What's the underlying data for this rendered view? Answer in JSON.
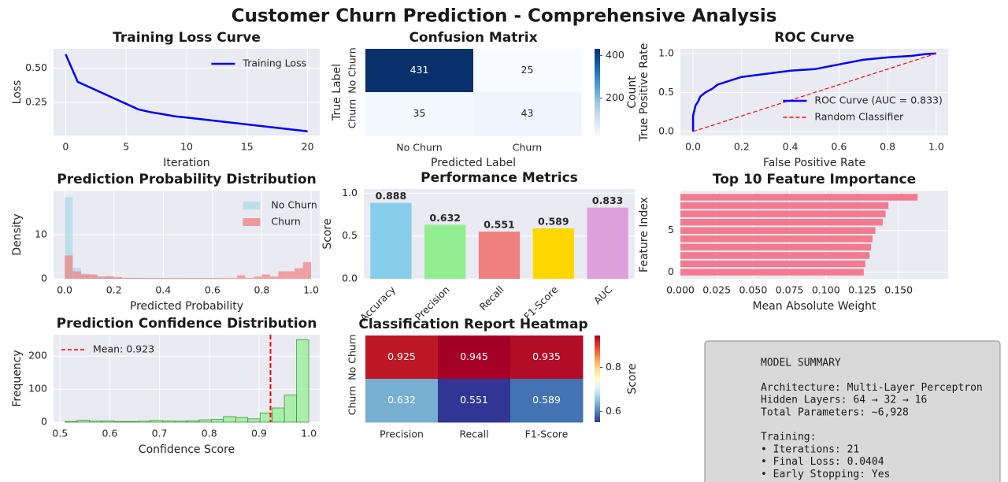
{
  "title": "Customer Churn Prediction - Comprehensive Analysis",
  "chart_data": [
    {
      "type": "line",
      "title": "Training Loss Curve",
      "xlabel": "Iteration",
      "ylabel": "Loss",
      "xlim": [
        -1,
        21
      ],
      "ylim": [
        0.01,
        0.64
      ],
      "xticks": [
        0,
        5,
        10,
        15,
        20
      ],
      "yticks": [
        0.25,
        {
          "value": 0.5,
          "label": "0.50"
        }
      ],
      "grid": true,
      "legend": "upper right",
      "series": [
        {
          "name": "Training Loss",
          "color": "#0000ff",
          "x": [
            0,
            1,
            2,
            3,
            4,
            5,
            6,
            7,
            8,
            9,
            10,
            11,
            12,
            13,
            14,
            15,
            16,
            17,
            18,
            19,
            20
          ],
          "values": [
            0.6,
            0.4,
            0.36,
            0.32,
            0.28,
            0.24,
            0.2,
            0.18,
            0.165,
            0.15,
            0.14,
            0.13,
            0.12,
            0.11,
            0.1,
            0.09,
            0.08,
            0.07,
            0.06,
            0.05,
            0.0404
          ]
        }
      ]
    },
    {
      "type": "heatmap",
      "title": "Confusion Matrix",
      "xlabel": "Predicted Label",
      "ylabel": "True Label",
      "rows": [
        "No Churn",
        "Churn"
      ],
      "cols": [
        "No Churn",
        "Churn"
      ],
      "values": [
        [
          431,
          25
        ],
        [
          35,
          43
        ]
      ],
      "colormap": "Blues",
      "clim": [
        25,
        431
      ],
      "cbar_ticks": [
        200,
        400
      ],
      "cbar_label": "Count"
    },
    {
      "type": "line",
      "title": "ROC Curve",
      "xlabel": "False Positive Rate",
      "ylabel": "True Positive Rate",
      "xlim": [
        -0.052,
        1.049
      ],
      "ylim": [
        -0.05,
        1.06
      ],
      "xticks": [
        {
          "value": 0,
          "label": "0.0"
        },
        0.2,
        0.4,
        0.6,
        0.8,
        {
          "value": 1,
          "label": "1.0"
        }
      ],
      "yticks": [
        {
          "value": 0,
          "label": "0.0"
        },
        0.5,
        {
          "value": 1,
          "label": "1.0"
        }
      ],
      "grid": true,
      "legend": "lower right",
      "series": [
        {
          "name": "ROC Curve (AUC = 0.833)",
          "color": "#0000ff",
          "x": [
            0,
            0,
            0.01,
            0.02,
            0.03,
            0.05,
            0.08,
            0.1,
            0.15,
            0.2,
            0.25,
            0.3,
            0.4,
            0.5,
            0.6,
            0.7,
            0.8,
            0.9,
            0.95,
            1
          ],
          "values": [
            0,
            0.2,
            0.33,
            0.38,
            0.45,
            0.5,
            0.55,
            0.6,
            0.65,
            0.7,
            0.72,
            0.74,
            0.78,
            0.8,
            0.86,
            0.92,
            0.95,
            0.97,
            0.99,
            1
          ]
        },
        {
          "name": "Random Classifier",
          "color": "#ff0000",
          "dash": true,
          "x": [
            0,
            1
          ],
          "values": [
            0,
            1
          ]
        }
      ]
    },
    {
      "type": "histogram",
      "title": "Prediction Probability Distribution",
      "xlabel": "Predicted Probability",
      "ylabel": "Density",
      "xlim": [
        -0.045,
        1.035
      ],
      "ylim": [
        0,
        20
      ],
      "xticks": [
        {
          "value": 0,
          "label": "0.0"
        },
        0.2,
        0.4,
        0.6,
        0.8,
        {
          "value": 1,
          "label": "1.0"
        }
      ],
      "yticks": [
        0,
        10
      ],
      "grid": true,
      "legend": "upper right",
      "bins": [
        0,
        0.033,
        0.067,
        0.1,
        0.133,
        0.167,
        0.2,
        0.233,
        0.267,
        0.3,
        0.333,
        0.367,
        0.4,
        0.433,
        0.467,
        0.5,
        0.533,
        0.567,
        0.6,
        0.633,
        0.667,
        0.7,
        0.733,
        0.767,
        0.8,
        0.833,
        0.867,
        0.9,
        0.933,
        0.967,
        1
      ],
      "series": [
        {
          "name": "No Churn",
          "color": "#add8e6",
          "values": [
            18.5,
            2.5,
            1.2,
            0.8,
            0.5,
            0.4,
            0.3,
            0.2,
            0.2,
            0.1,
            0.1,
            0.1,
            0,
            0,
            0,
            0,
            0,
            0,
            0,
            0,
            0,
            0,
            0,
            0,
            0,
            0,
            0,
            0,
            0,
            0
          ]
        },
        {
          "name": "Churn",
          "color": "#f08080",
          "values": [
            5.3,
            1.7,
            1,
            1,
            0.5,
            0.6,
            0.4,
            0.2,
            0.2,
            0.2,
            0.2,
            0.2,
            0.2,
            0.2,
            0.2,
            0.2,
            0.2,
            0.2,
            0.2,
            0.2,
            0.2,
            0.8,
            0.2,
            0.5,
            1,
            0.5,
            1.7,
            1.7,
            2.4,
            3.8
          ]
        }
      ]
    },
    {
      "type": "bar",
      "title": "Performance Metrics",
      "ylabel": "Score",
      "categories": [
        "Accuracy",
        "Precision",
        "Recall",
        "F1-Score",
        "AUC"
      ],
      "values": [
        0.888,
        0.632,
        0.551,
        0.589,
        0.833
      ],
      "colors": [
        "#87ceeb",
        "#90ee90",
        "#f08080",
        "#ffd700",
        "#dda0dd"
      ],
      "ylim": [
        0,
        1.05
      ],
      "yticks": [
        {
          "value": 0,
          "label": "0.0"
        },
        0.5,
        {
          "value": 1,
          "label": "1.0"
        }
      ],
      "grid": true
    },
    {
      "type": "barh",
      "title": "Top 10 Feature Importance",
      "xlabel": "Mean Absolute Weight",
      "ylabel": "Feature Index",
      "y": [
        0,
        1,
        2,
        3,
        4,
        5,
        6,
        7,
        8,
        9
      ],
      "values": [
        0.126,
        0.127,
        0.13,
        0.131,
        0.132,
        0.134,
        0.139,
        0.141,
        0.143,
        0.163
      ],
      "color": "#f37a8f",
      "xlim": [
        0,
        0.184
      ],
      "ylim": [
        -0.8,
        9.8
      ],
      "xticks": [
        {
          "value": 0,
          "label": "0.000"
        },
        0.025,
        {
          "value": 0.05,
          "label": "0.050"
        },
        0.075,
        {
          "value": 0.1,
          "label": "0.100"
        },
        0.125,
        {
          "value": 0.15,
          "label": "0.150"
        }
      ],
      "yticks": [
        0,
        5
      ],
      "grid": true
    },
    {
      "type": "histogram",
      "title": "Prediction Confidence Distribution",
      "xlabel": "Confidence Score",
      "ylabel": "Frequency",
      "xlim": [
        0.487,
        1.022
      ],
      "ylim": [
        0,
        265
      ],
      "xticks": [
        0.5,
        0.6,
        0.7,
        0.8,
        0.9,
        {
          "value": 1,
          "label": "1.0"
        }
      ],
      "yticks": [
        0,
        100,
        200
      ],
      "grid": true,
      "legend": "upper left",
      "bins": [
        0.51,
        0.5345,
        0.559,
        0.5835,
        0.608,
        0.6325,
        0.657,
        0.6815,
        0.706,
        0.7305,
        0.755,
        0.7795,
        0.804,
        0.8285,
        0.853,
        0.8775,
        0.902,
        0.9265,
        0.951,
        0.9755,
        1
      ],
      "series": [
        {
          "color": "#90ee90",
          "edgecolor": "#3a9a3a",
          "values": [
            2,
            6,
            3,
            4,
            2,
            2,
            3,
            5,
            4,
            3,
            4,
            7,
            8,
            17,
            14,
            10,
            28,
            43,
            82,
            250
          ]
        }
      ],
      "mean_line": {
        "value": 0.923,
        "label": "Mean: 0.923",
        "color": "#ff0000"
      }
    },
    {
      "type": "heatmap",
      "title": "Classification Report Heatmap",
      "rows": [
        "No Churn",
        "Churn"
      ],
      "cols": [
        "Precision",
        "Recall",
        "F1-Score"
      ],
      "values": [
        [
          0.925,
          0.945,
          0.935
        ],
        [
          0.632,
          0.551,
          0.589
        ]
      ],
      "colormap": "RdYlBu_r",
      "clim": [
        0.551,
        0.945
      ],
      "cbar_ticks": [
        0.6,
        0.8
      ],
      "cbar_label": "Score"
    }
  ],
  "model_summary": {
    "groups": [
      [
        "MODEL SUMMARY"
      ],
      [
        "Architecture: Multi-Layer Perceptron",
        "Hidden Layers: 64 → 32 → 16",
        "Total Parameters: ~6,928"
      ],
      [
        "Training:",
        "• Iterations: 21",
        "• Final Loss: 0.0404",
        "• Early Stopping: Yes"
      ]
    ]
  }
}
